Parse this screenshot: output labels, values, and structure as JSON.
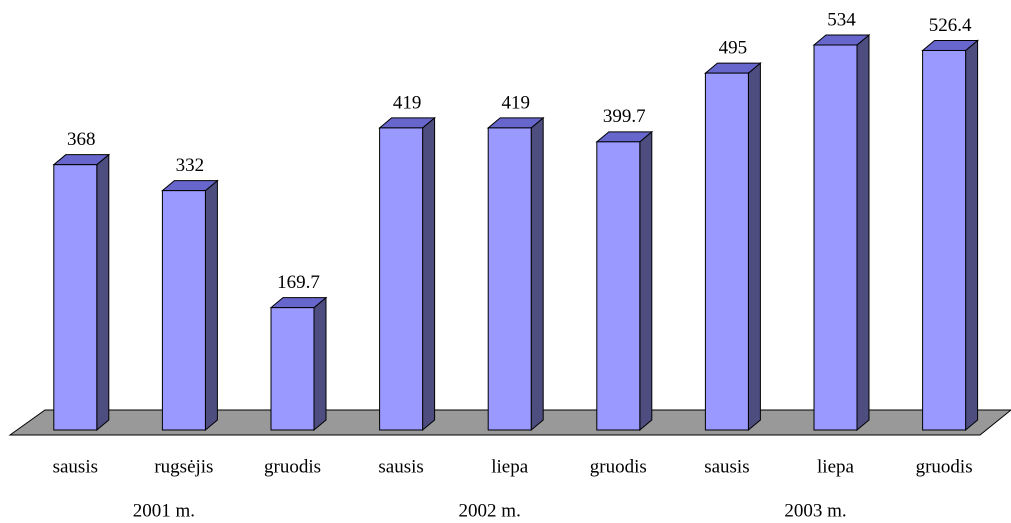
{
  "chart_data": {
    "type": "bar3d",
    "categories": [
      "sausis",
      "rugsėjis",
      "gruodis",
      "sausis",
      "liepa",
      "gruodis",
      "sausis",
      "liepa",
      "gruodis"
    ],
    "groups": [
      "2001 m.",
      "2002 m.",
      "2003 m."
    ],
    "values": [
      368,
      332,
      169.7,
      419,
      419,
      399.7,
      495,
      534,
      526.4
    ],
    "color": "#9999ff"
  }
}
